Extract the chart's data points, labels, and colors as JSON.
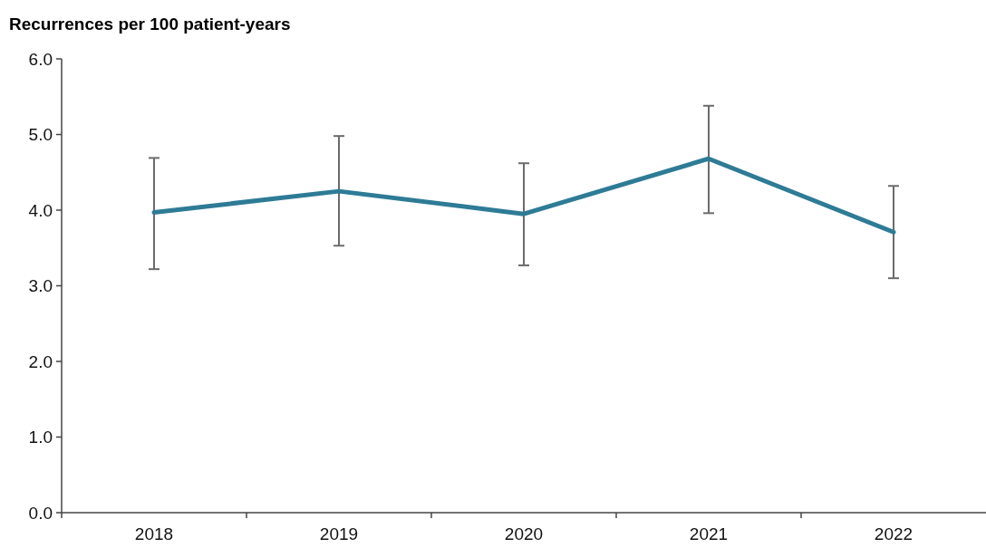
{
  "chart_data": {
    "type": "line",
    "title": "Recurrences per 100 patient-years",
    "categories": [
      "2018",
      "2019",
      "2020",
      "2021",
      "2022"
    ],
    "series": [
      {
        "color": "#2e7b96",
        "values": [
          3.97,
          4.25,
          3.95,
          4.68,
          3.71
        ],
        "errors": [
          [
            3.22,
            4.69
          ],
          [
            3.53,
            4.98
          ],
          [
            3.27,
            4.62
          ],
          [
            3.96,
            5.38
          ],
          [
            3.1,
            4.32
          ]
        ]
      }
    ],
    "ylim": [
      0,
      6
    ],
    "yticks": [
      {
        "value": 0,
        "label": "0.0"
      },
      {
        "value": 1,
        "label": "1.0"
      },
      {
        "value": 2,
        "label": "2.0"
      },
      {
        "value": 3,
        "label": "3.0"
      },
      {
        "value": 4,
        "label": "4.0"
      },
      {
        "value": 5,
        "label": "5.0"
      },
      {
        "value": 6,
        "label": "6.0"
      }
    ],
    "grid": false,
    "marker": "none",
    "line_style": "solid"
  }
}
